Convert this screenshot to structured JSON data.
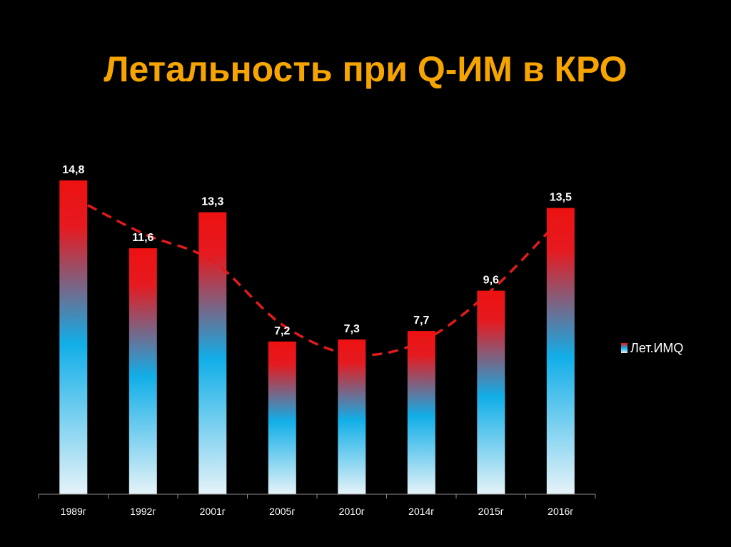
{
  "slide": {
    "title": "Летальность при Q-ИМ в КРО"
  },
  "colors": {
    "background": "#000000",
    "title": "#f6a400",
    "bar_top": "#ee1111",
    "bar_mid": "#11aee8",
    "bar_bottom": "#e6f3f8",
    "trendline": "#e01b1b",
    "axis": "#8c8c8c",
    "text": "#ffffff"
  },
  "chart_data": {
    "type": "bar",
    "categories": [
      "1989г",
      "1992г",
      "2001г",
      "2005г",
      "2010г",
      "2014г",
      "2015г",
      "2016г"
    ],
    "series": [
      {
        "name": "Лет.ИМQ",
        "values": [
          14.8,
          11.6,
          13.3,
          7.2,
          7.3,
          7.7,
          9.6,
          13.5
        ],
        "labels": [
          "14,8",
          "11,6",
          "13,3",
          "7,2",
          "7,3",
          "7,7",
          "9,6",
          "13,5"
        ]
      }
    ],
    "trendline": {
      "style": "dashed",
      "kind": "polynomial",
      "values": [
        14.0,
        12.3,
        11.0,
        8.0,
        6.6,
        7.2,
        9.6,
        13.0
      ]
    },
    "ylim": [
      0,
      14.8
    ],
    "grid": false,
    "legend": "right",
    "data_labels": true
  }
}
